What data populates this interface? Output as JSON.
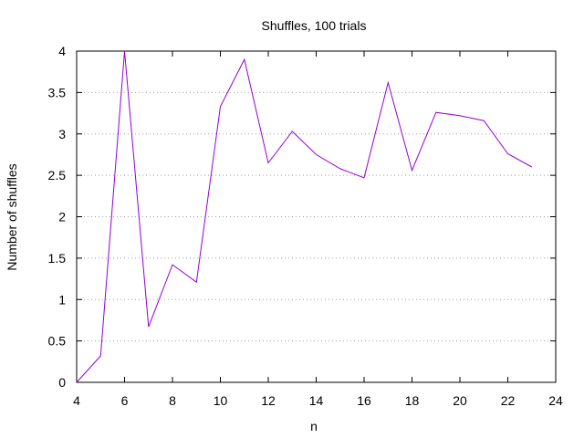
{
  "chart_data": {
    "type": "line",
    "title": "Shuffles, 100 trials",
    "xlabel": "n",
    "ylabel": "Number of shuffles",
    "xlim": [
      4,
      24
    ],
    "ylim": [
      0,
      4
    ],
    "xticks": [
      4,
      6,
      8,
      10,
      12,
      14,
      16,
      18,
      20,
      22,
      24
    ],
    "yticks": [
      0,
      0.5,
      1,
      1.5,
      2,
      2.5,
      3,
      3.5,
      4
    ],
    "ytick_labels": [
      "0",
      "0.5",
      "1",
      "1.5",
      "2",
      "2.5",
      "3",
      "3.5",
      "4"
    ],
    "grid": "horizontal-dotted",
    "legend": "none",
    "series": [
      {
        "color": "#9400d3",
        "x": [
          4,
          5,
          6,
          7,
          8,
          9,
          10,
          11,
          12,
          13,
          14,
          15,
          16,
          17,
          18,
          19,
          20,
          21,
          22,
          23
        ],
        "y": [
          0,
          0.32,
          4.0,
          0.67,
          1.42,
          1.21,
          3.33,
          3.9,
          2.65,
          3.03,
          2.75,
          2.58,
          2.47,
          3.62,
          2.56,
          3.26,
          3.22,
          3.16,
          2.76,
          2.6
        ]
      }
    ]
  }
}
